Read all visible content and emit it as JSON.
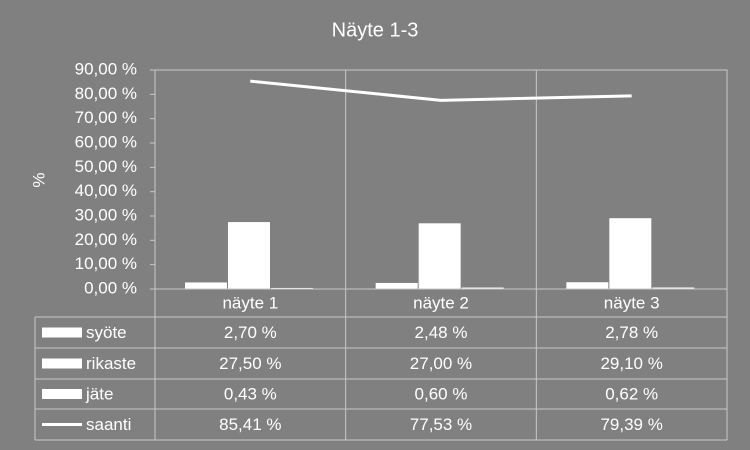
{
  "chart_data": {
    "type": "bar",
    "title": "Näyte 1-3",
    "y_label": "%",
    "categories": [
      "näyte 1",
      "näyte 2",
      "näyte 3"
    ],
    "series": [
      {
        "name": "syöte",
        "type": "bar",
        "color": "#ffffff",
        "values": [
          2.7,
          2.48,
          2.78
        ],
        "value_labels": [
          "2,70 %",
          "2,48 %",
          "2,78 %"
        ]
      },
      {
        "name": "rikaste",
        "type": "bar",
        "color": "#ffffff",
        "values": [
          27.5,
          27.0,
          29.1
        ],
        "value_labels": [
          "27,50 %",
          "27,00 %",
          "29,10 %"
        ]
      },
      {
        "name": "jäte",
        "type": "bar",
        "color": "#ffffff",
        "values": [
          0.43,
          0.6,
          0.62
        ],
        "value_labels": [
          "0,43 %",
          "0,60 %",
          "0,62 %"
        ]
      },
      {
        "name": "saanti",
        "type": "line",
        "color": "#ffffff",
        "values": [
          85.41,
          77.53,
          79.39
        ],
        "value_labels": [
          "85,41 %",
          "77,53 %",
          "79,39 %"
        ]
      }
    ],
    "ylim": [
      0,
      90
    ],
    "yticks": [
      {
        "value": 0,
        "label": "0,00 %"
      },
      {
        "value": 10,
        "label": "10,00 %"
      },
      {
        "value": 20,
        "label": "20,00 %"
      },
      {
        "value": 30,
        "label": "30,00 %"
      },
      {
        "value": 40,
        "label": "40,00 %"
      },
      {
        "value": 50,
        "label": "50,00 %"
      },
      {
        "value": 60,
        "label": "60,00 %"
      },
      {
        "value": 70,
        "label": "70,00 %"
      },
      {
        "value": 80,
        "label": "80,00 %"
      },
      {
        "value": 90,
        "label": "90,00 %"
      }
    ],
    "grid": false
  }
}
